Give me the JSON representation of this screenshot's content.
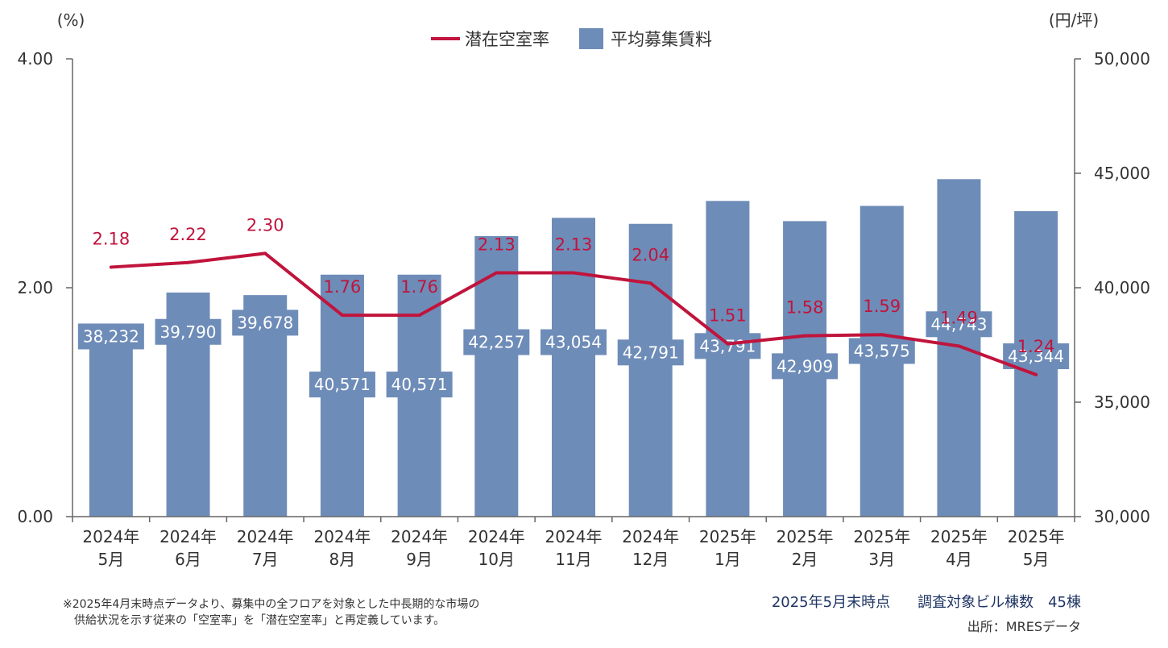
{
  "chart_data": {
    "type": "bar",
    "combo": "bar-line",
    "left_unit": "(%)",
    "right_unit": "(円/坪)",
    "categories": [
      [
        "2024年",
        "5月"
      ],
      [
        "2024年",
        "6月"
      ],
      [
        "2024年",
        "7月"
      ],
      [
        "2024年",
        "8月"
      ],
      [
        "2024年",
        "9月"
      ],
      [
        "2024年",
        "10月"
      ],
      [
        "2024年",
        "11月"
      ],
      [
        "2024年",
        "12月"
      ],
      [
        "2025年",
        "1月"
      ],
      [
        "2025年",
        "2月"
      ],
      [
        "2025年",
        "3月"
      ],
      [
        "2025年",
        "4月"
      ],
      [
        "2025年",
        "5月"
      ]
    ],
    "series": [
      {
        "name": "潜在空室率",
        "type": "line",
        "axis": "left",
        "color": "#c0143c",
        "values": [
          2.18,
          2.22,
          2.3,
          1.76,
          1.76,
          2.13,
          2.13,
          2.04,
          1.51,
          1.58,
          1.59,
          1.49,
          1.24
        ],
        "labels": [
          "2.18",
          "2.22",
          "2.30",
          "1.76",
          "1.76",
          "2.13",
          "2.13",
          "2.04",
          "1.51",
          "1.58",
          "1.59",
          "1.49",
          "1.24"
        ]
      },
      {
        "name": "平均募集賃料",
        "type": "bar",
        "axis": "right",
        "color": "#6e8cb8",
        "values": [
          38232,
          39790,
          39678,
          40571,
          40571,
          42257,
          43054,
          42791,
          43791,
          42909,
          43575,
          44743,
          43344
        ],
        "labels": [
          "38,232",
          "39,790",
          "39,678",
          "40,571",
          "40,571",
          "42,257",
          "43,054",
          "42,791",
          "43,791",
          "42,909",
          "43,575",
          "44,743",
          "43,344"
        ]
      }
    ],
    "left_axis": {
      "ylim": [
        0,
        4
      ],
      "ticks": [
        "0.00",
        "2.00",
        "4.00"
      ]
    },
    "right_axis": {
      "ylim": [
        30000,
        50000
      ],
      "ticks": [
        "30,000",
        "35,000",
        "40,000",
        "45,000",
        "50,000"
      ]
    },
    "legend_position": "top-center",
    "grid": false
  },
  "footer": {
    "note_lines": [
      "※2025年4月末時点データより、募集中の全フロアを対象とした中長期的な市場の",
      "　供給状況を示す従来の「空室率」を「潜在空室率」と再定義しています。"
    ],
    "as_of": "2025年5月末時点",
    "survey_count": "調査対象ビル棟数　45棟",
    "source": "出所：MRESデータ"
  }
}
